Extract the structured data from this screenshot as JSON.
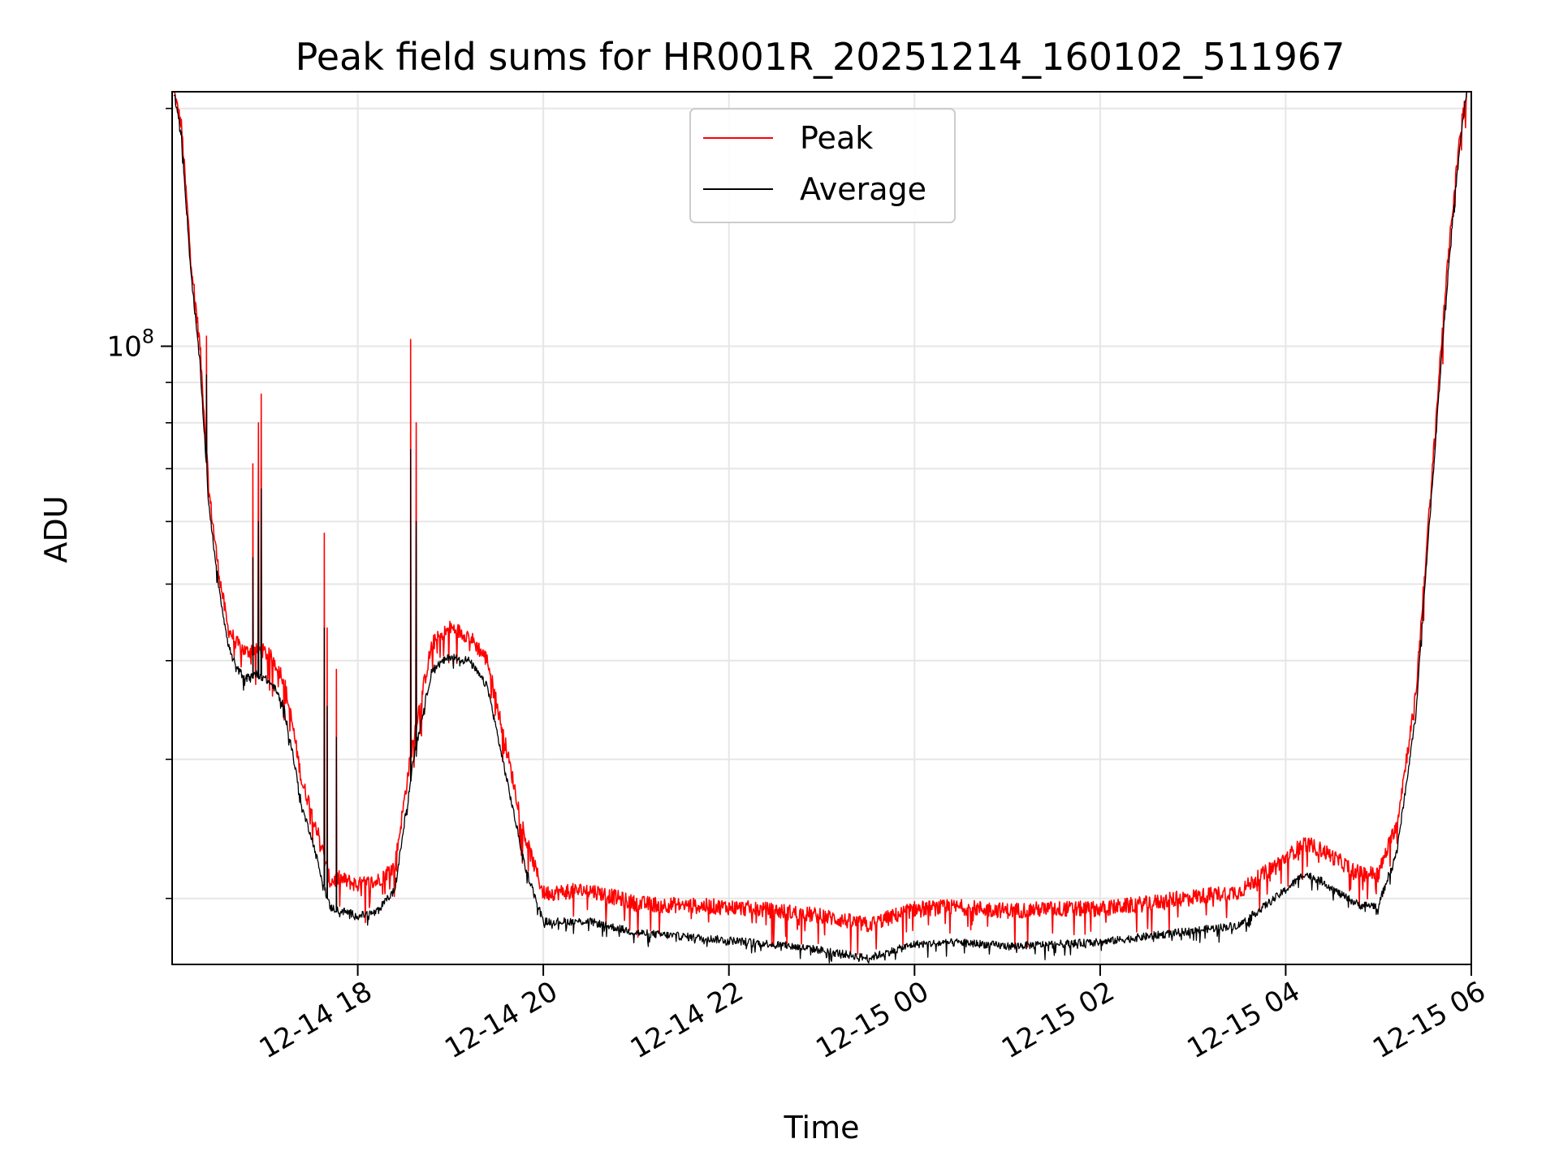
{
  "chart_data": {
    "type": "line",
    "title": "Peak field sums for HR001R_20251214_160102_511967",
    "xlabel": "Time",
    "ylabel": "ADU",
    "yscale": "log",
    "grid": true,
    "legend_position": "top-center",
    "x_units": "hours after 12-14 16:00",
    "xlim": [
      0.0,
      14.0
    ],
    "ylim": [
      16500000,
      210000000
    ],
    "x_ticks": [
      {
        "value": 2,
        "label": "12-14 18"
      },
      {
        "value": 4,
        "label": "12-14 20"
      },
      {
        "value": 6,
        "label": "12-14 22"
      },
      {
        "value": 8,
        "label": "12-15 00"
      },
      {
        "value": 10,
        "label": "12-15 02"
      },
      {
        "value": 12,
        "label": "12-15 04"
      },
      {
        "value": 14,
        "label": "12-15 06"
      }
    ],
    "y_major_ticks": [
      {
        "value": 100000000,
        "base": "10",
        "exp": "8"
      }
    ],
    "y_minor_ticks": [
      20000000,
      30000000,
      40000000,
      50000000,
      60000000,
      70000000,
      80000000,
      90000000,
      200000000
    ],
    "series": [
      {
        "name": "Peak",
        "color": "#ff0000",
        "x": [
          0.02,
          0.1,
          0.2,
          0.3,
          0.4,
          0.5,
          0.6,
          0.7,
          0.8,
          0.9,
          1.0,
          1.1,
          1.2,
          1.3,
          1.4,
          1.5,
          1.6,
          1.7,
          1.8,
          1.9,
          2.0,
          2.2,
          2.4,
          2.6,
          2.8,
          3.0,
          3.2,
          3.4,
          3.6,
          3.8,
          4.0,
          4.5,
          5.0,
          5.5,
          6.0,
          6.5,
          7.0,
          7.5,
          8.0,
          8.5,
          9.0,
          9.5,
          10.0,
          10.5,
          11.0,
          11.5,
          12.0,
          12.2,
          12.4,
          12.6,
          12.8,
          13.0,
          13.2,
          13.4,
          13.5,
          13.6,
          13.7,
          13.8,
          13.9,
          13.95
        ],
        "y": [
          210000000,
          190000000,
          130000000,
          100000000,
          65000000,
          52000000,
          44000000,
          42000000,
          41000000,
          41500000,
          41000000,
          40000000,
          38000000,
          33000000,
          28000000,
          26000000,
          23500000,
          21000000,
          21200000,
          21000000,
          20800000,
          21000000,
          22000000,
          32000000,
          42000000,
          44000000,
          43000000,
          40000000,
          31000000,
          24000000,
          20300000,
          20500000,
          19700000,
          19600000,
          19500000,
          19300000,
          19000000,
          18500000,
          19400000,
          19500000,
          19300000,
          19400000,
          19400000,
          19700000,
          20100000,
          20400000,
          22500000,
          23500000,
          23000000,
          22200000,
          21500000,
          21500000,
          25000000,
          36000000,
          52000000,
          75000000,
          110000000,
          150000000,
          195000000,
          210000000
        ]
      },
      {
        "name": "Average",
        "color": "#000000",
        "x": [
          0.02,
          0.1,
          0.2,
          0.3,
          0.4,
          0.5,
          0.6,
          0.7,
          0.8,
          0.9,
          1.0,
          1.1,
          1.2,
          1.3,
          1.4,
          1.5,
          1.6,
          1.7,
          1.8,
          1.9,
          2.0,
          2.2,
          2.4,
          2.6,
          2.8,
          3.0,
          3.2,
          3.4,
          3.6,
          3.8,
          4.0,
          4.5,
          5.0,
          5.5,
          6.0,
          6.5,
          7.0,
          7.5,
          8.0,
          8.5,
          9.0,
          9.5,
          10.0,
          10.5,
          11.0,
          11.5,
          12.0,
          12.2,
          12.4,
          12.6,
          12.8,
          13.0,
          13.2,
          13.4,
          13.5,
          13.6,
          13.7,
          13.8,
          13.9,
          13.95
        ],
        "y": [
          210000000,
          185000000,
          125000000,
          95000000,
          62000000,
          50000000,
          42000000,
          39000000,
          38000000,
          38500000,
          38000000,
          37000000,
          35000000,
          30500000,
          26000000,
          24000000,
          21500000,
          19500000,
          19300000,
          19200000,
          19000000,
          19200000,
          20500000,
          30000000,
          39000000,
          40500000,
          40000000,
          37000000,
          28500000,
          22000000,
          18700000,
          18700000,
          18100000,
          17900000,
          17700000,
          17500000,
          17200000,
          16800000,
          17500000,
          17600000,
          17400000,
          17500000,
          17600000,
          17900000,
          18200000,
          18500000,
          20500000,
          21500000,
          21000000,
          20200000,
          19600000,
          19600000,
          23000000,
          34000000,
          50000000,
          72000000,
          105000000,
          145000000,
          190000000,
          210000000
        ]
      }
    ],
    "spikes": [
      {
        "x": 0.37,
        "peak": 103000000,
        "average": 92000000
      },
      {
        "x": 0.87,
        "peak": 71000000,
        "average": 54000000
      },
      {
        "x": 0.93,
        "peak": 80000000,
        "average": 60000000
      },
      {
        "x": 0.96,
        "peak": 87000000,
        "average": 66000000
      },
      {
        "x": 1.64,
        "peak": 58000000,
        "average": 44000000
      },
      {
        "x": 1.67,
        "peak": 44000000,
        "average": 35000000
      },
      {
        "x": 1.77,
        "peak": 39000000,
        "average": 32000000
      },
      {
        "x": 2.57,
        "peak": 102000000,
        "average": 74000000
      },
      {
        "x": 2.63,
        "peak": 80000000,
        "average": 60000000
      }
    ]
  }
}
